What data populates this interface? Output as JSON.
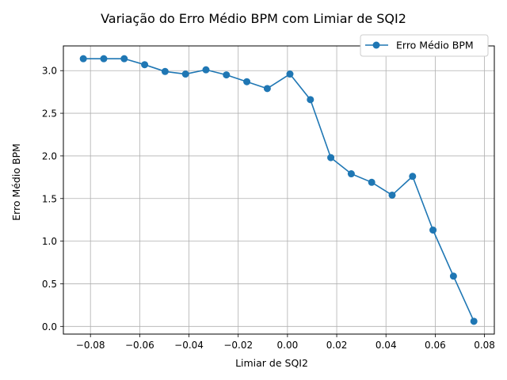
{
  "chart_data": {
    "type": "line",
    "title": "Variação do Erro Médio BPM com Limiar de SQI2",
    "xlabel": "Limiar de SQI2",
    "ylabel": "Erro Médio BPM",
    "xlim": [
      -0.091,
      0.084
    ],
    "ylim": [
      -0.09,
      3.29
    ],
    "x_ticks": [
      -0.08,
      -0.06,
      -0.04,
      -0.02,
      0.0,
      0.02,
      0.04,
      0.06,
      0.08
    ],
    "x_tick_labels": [
      "−0.08",
      "−0.06",
      "−0.04",
      "−0.02",
      "0.00",
      "0.02",
      "0.04",
      "0.06",
      "0.08"
    ],
    "y_ticks": [
      0.0,
      0.5,
      1.0,
      1.5,
      2.0,
      2.5,
      3.0
    ],
    "y_tick_labels": [
      "0.0",
      "0.5",
      "1.0",
      "1.5",
      "2.0",
      "2.5",
      "3.0"
    ],
    "grid": true,
    "legend_position": "top-right",
    "series": [
      {
        "name": "Erro Médio BPM",
        "color": "#1f77b4",
        "x": [
          -0.0829,
          -0.0746,
          -0.0663,
          -0.058,
          -0.0497,
          -0.0414,
          -0.0331,
          -0.0248,
          -0.0165,
          -0.0082,
          0.001,
          0.0093,
          0.0176,
          0.0259,
          0.0342,
          0.0425,
          0.0508,
          0.0591,
          0.0674,
          0.0757
        ],
        "y": [
          3.14,
          3.14,
          3.14,
          3.07,
          2.99,
          2.96,
          3.01,
          2.95,
          2.87,
          2.79,
          2.96,
          2.66,
          1.98,
          1.79,
          1.69,
          1.54,
          1.76,
          1.13,
          0.59,
          0.06
        ]
      }
    ]
  }
}
